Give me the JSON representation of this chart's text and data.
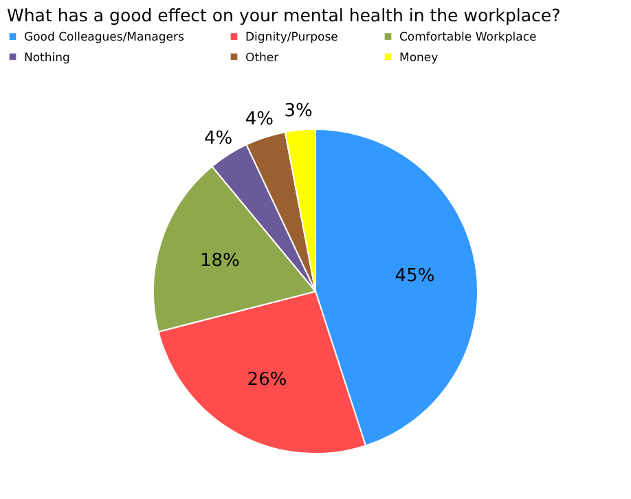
{
  "chart_data": {
    "type": "pie",
    "title": "What has a good effect on your mental health in the workplace?",
    "categories": [
      "Good Colleagues/Managers",
      "Dignity/Purpose",
      "Comfortable Workplace",
      "Nothing",
      "Other",
      "Money"
    ],
    "values": [
      45,
      26,
      18,
      4,
      4,
      3
    ],
    "colors": [
      "#3399ff",
      "#ff4d4d",
      "#8fa84c",
      "#6b5a9a",
      "#9a6030",
      "#ffff00"
    ],
    "value_labels": [
      "45%",
      "26%",
      "18%",
      "4%",
      "4%",
      "3%"
    ],
    "legend": "top"
  }
}
